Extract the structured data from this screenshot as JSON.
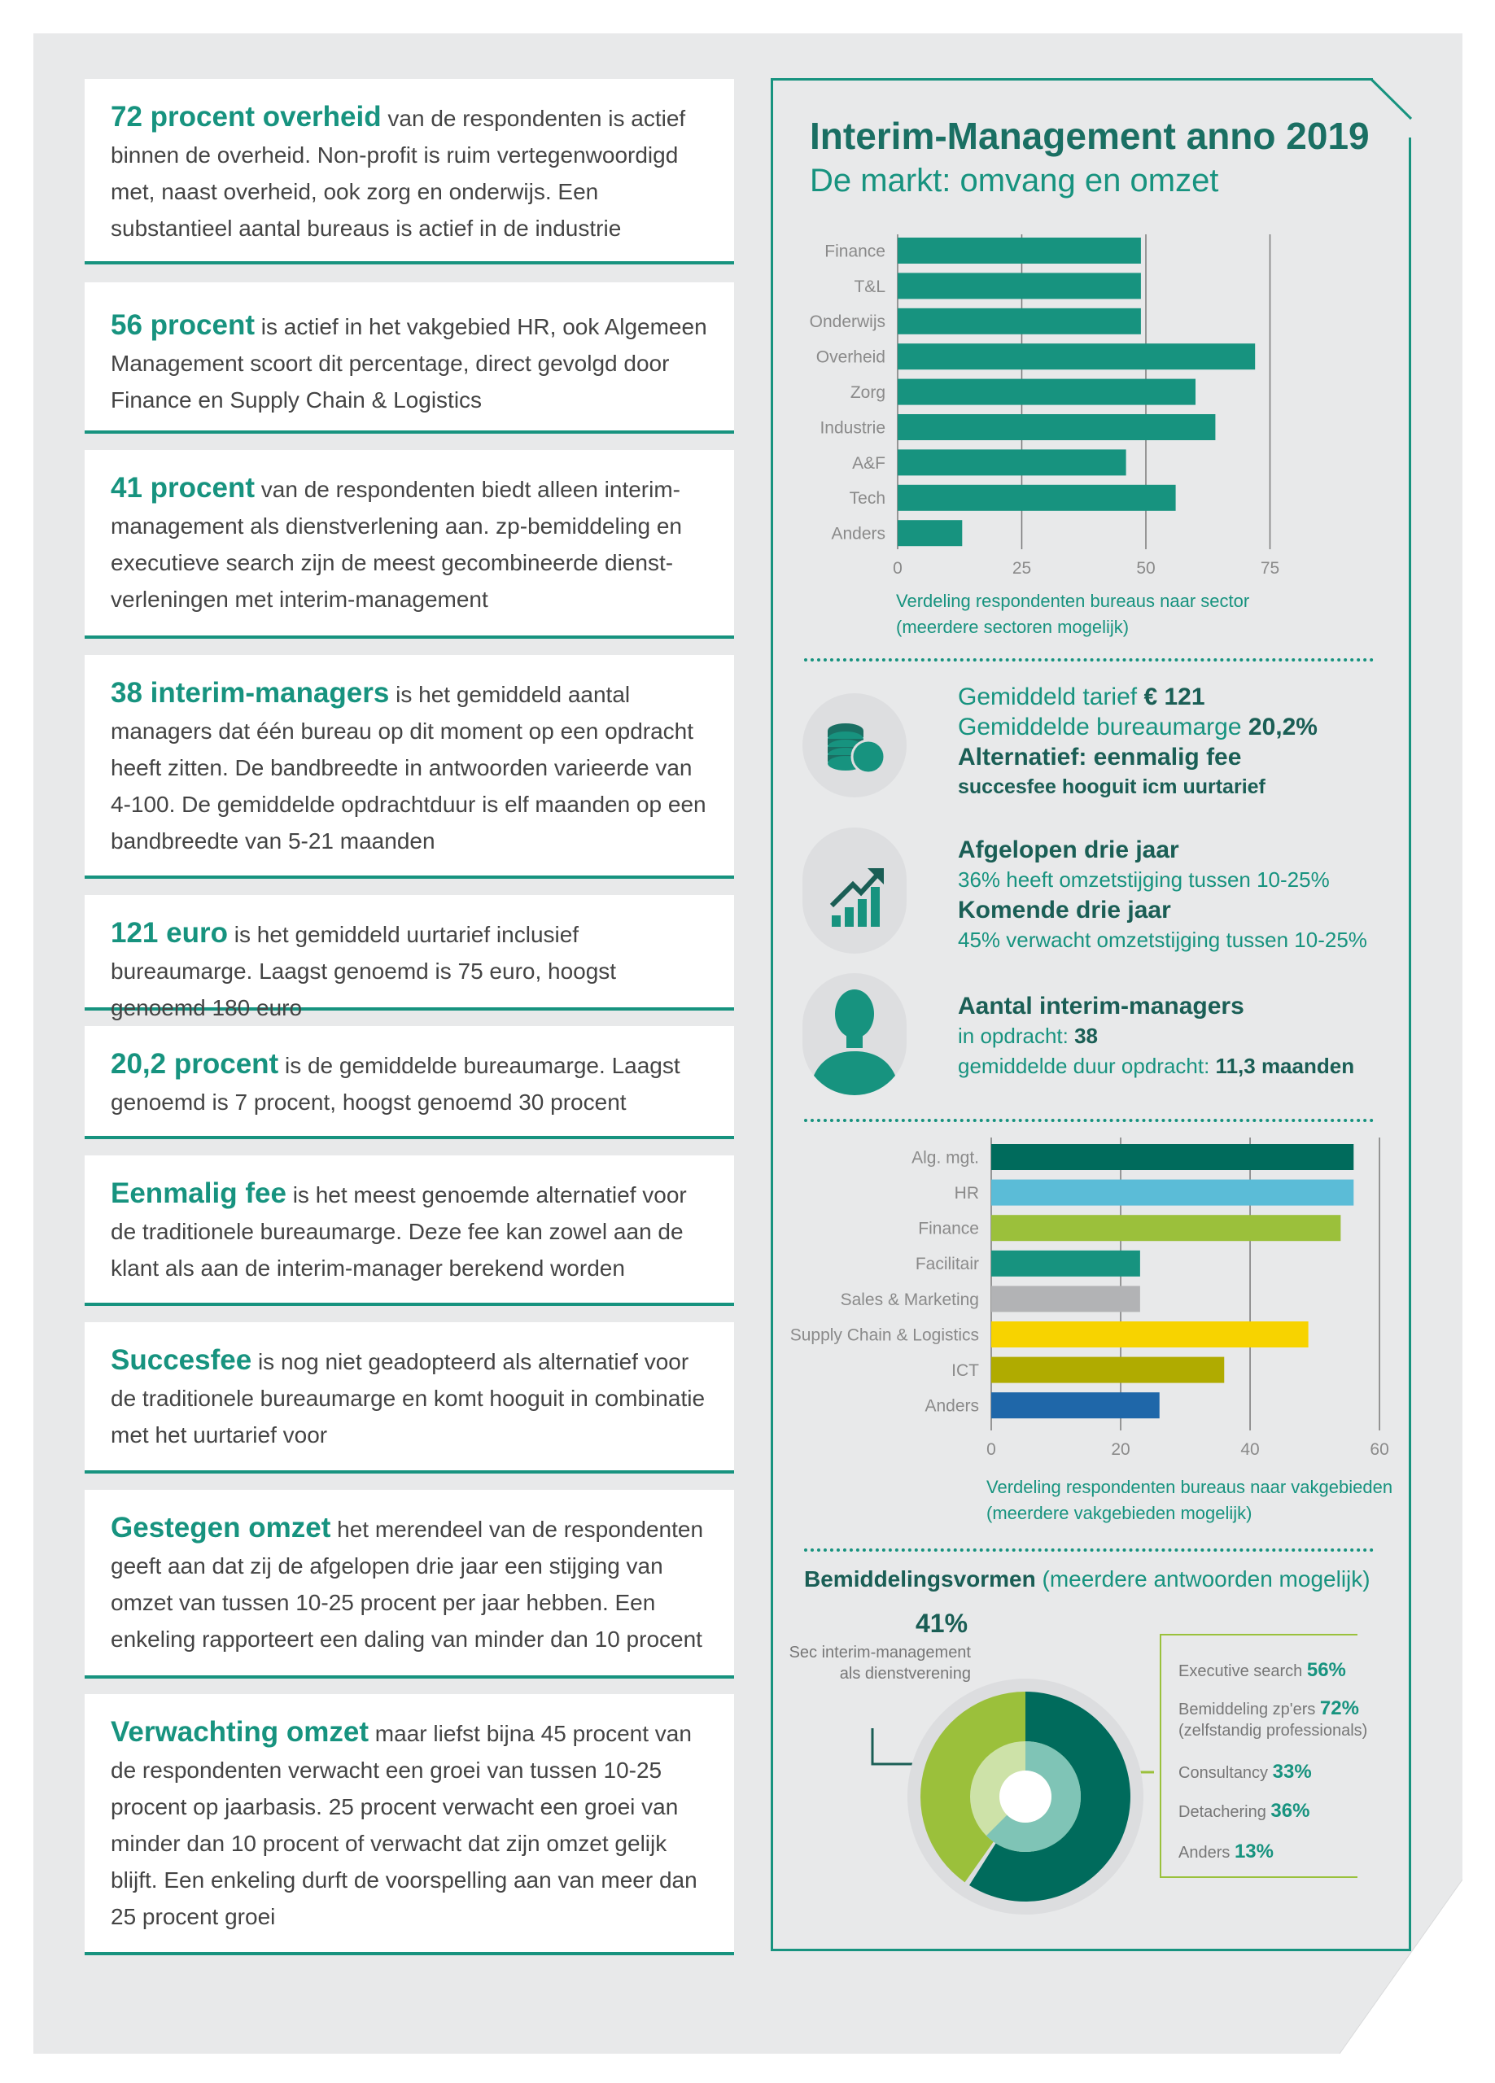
{
  "left_cards": [
    {
      "highlight": "72 procent overheid",
      "text": " van de respondenten is actief binnen de overheid. Non-profit is ruim vertegenwoordigd met, naast overheid, ook zorg en onderwijs. Een substantieel aantal bureaus is actief in de industrie"
    },
    {
      "highlight": "56 procent",
      "text": " is actief in het vakgebied HR, ook Algemeen Management scoort dit percentage, direct gevolgd door Finance en Supply Chain & Logistics"
    },
    {
      "highlight": "41 procent",
      "text": " van de respondenten biedt alleen interim-management als dienstverlening aan. zp-bemiddeling en executieve search zijn de meest gecombineerde dienst-verleningen met interim-management"
    },
    {
      "highlight": "38 interim-managers",
      "text": " is het gemiddeld aantal managers dat één bureau op dit moment op een opdracht heeft zitten. De bandbreedte in antwoorden varieerde van 4-100. De gemiddelde opdrachtduur is elf maanden op een bandbreedte van 5-21 maanden"
    },
    {
      "highlight": "121 euro",
      "text": " is het gemiddeld uurtarief inclusief bureaumarge. Laagst genoemd is 75 euro, hoogst genoemd 180 euro"
    },
    {
      "highlight": "20,2 procent",
      "text": " is de gemiddelde bureaumarge. Laagst genoemd is 7 procent, hoogst genoemd 30 procent"
    },
    {
      "highlight": "Eenmalig fee",
      "text": " is het meest genoemde alternatief voor de traditionele bureaumarge. Deze fee kan zowel aan de klant als aan de interim-manager berekend worden"
    },
    {
      "highlight": "Succesfee",
      "text": " is nog niet geadopteerd als alternatief voor de traditionele bureaumarge en komt hooguit in combinatie met het uurtarief voor"
    },
    {
      "highlight": "Gestegen omzet",
      "text": " het merendeel van de respondenten geeft aan dat zij de afgelopen drie jaar een stijging van omzet van tussen 10-25 procent per jaar hebben. Een enkeling rapporteert een daling van minder dan 10 procent"
    },
    {
      "highlight": "Verwachting omzet",
      "text": " maar liefst bijna 45 procent van de respondenten verwacht een groei van tussen 10-25 procent op jaarbasis. 25 procent verwacht een groei van minder dan 10 procent of verwacht dat zijn omzet gelijk blijft. Een enkeling durft de voorspelling aan van meer dan 25 procent groei"
    }
  ],
  "panel": {
    "title": "Interim-Management anno 2019",
    "subtitle": "De markt: omvang en omzet"
  },
  "stats": {
    "tarief_label": "Gemiddeld tarief ",
    "tarief_value": "€ 121",
    "marge_label": "Gemiddelde bureaumarge ",
    "marge_value": "20,2%",
    "alt_line1": "Alternatief: eenmalig fee",
    "alt_line2": "succesfee hooguit icm uurtarief",
    "past_title": "Afgelopen drie jaar",
    "past_text": "36% heeft omzetstijging tussen 10-25%",
    "future_title": "Komende drie jaar",
    "future_text": "45% verwacht omzetstijging tussen 10-25%",
    "managers_title": "Aantal interim-managers",
    "opdracht_label": "in opdracht: ",
    "opdracht_value": "38",
    "duur_label": "gemiddelde duur opdracht: ",
    "duur_value": "11,3 maanden"
  },
  "icons": {
    "coins": "coins-icon",
    "growth": "growth-chart-icon",
    "person": "person-icon"
  },
  "bemiddeling": {
    "title": "Bemiddelingsvormen",
    "note": " (meerdere antwoorden mogelijk)",
    "big_value": "41%",
    "big_label_1": "Sec interim-management",
    "big_label_2": "als dienstverening"
  },
  "chart_data": [
    {
      "type": "bar",
      "orientation": "horizontal",
      "categories": [
        "Finance",
        "T&L",
        "Onderwijs",
        "Overheid",
        "Zorg",
        "Industrie",
        "A&F",
        "Tech",
        "Anders"
      ],
      "values": [
        49,
        49,
        49,
        72,
        60,
        64,
        46,
        56,
        13
      ],
      "xlim": [
        0,
        80
      ],
      "xticks": [
        0,
        25,
        50,
        75
      ],
      "color": "#17937f",
      "caption_1": "Verdeling respondenten bureaus naar sector",
      "caption_2": "(meerdere sectoren mogelijk)"
    },
    {
      "type": "bar",
      "orientation": "horizontal",
      "categories": [
        "Alg. mgt.",
        "HR",
        "Finance",
        "Facilitair",
        "Sales & Marketing",
        "Supply Chain & Logistics",
        "ICT",
        "Anders"
      ],
      "values": [
        56,
        56,
        54,
        23,
        23,
        49,
        36,
        26
      ],
      "colors": [
        "#006b5c",
        "#5bbcd7",
        "#9bc03b",
        "#17937f",
        "#b2b3b5",
        "#f7d300",
        "#b0ab00",
        "#1f67a9"
      ],
      "xlim": [
        0,
        62
      ],
      "xticks": [
        0,
        20,
        40,
        60
      ],
      "caption_1": "Verdeling respondenten bureaus naar vakgebieden",
      "caption_2": "(meerdere vakgebieden mogelijk)"
    },
    {
      "type": "pie",
      "title": "Bemiddelingsvormen",
      "slices": [
        {
          "label": "Executive search",
          "value": 56
        },
        {
          "label": "Bemiddeling zp'ers",
          "sublabel": "(zelfstandig professionals)",
          "value": 72
        },
        {
          "label": "Consultancy",
          "value": 33
        },
        {
          "label": "Detachering",
          "value": 36
        },
        {
          "label": "Anders",
          "value": 13
        }
      ],
      "display_values": [
        "56%",
        "72%",
        "33%",
        "36%",
        "13%"
      ],
      "donut_outer_split": [
        41,
        59
      ],
      "colors": {
        "light_green": "#9bc03b",
        "dark_teal": "#006b5c",
        "teal": "#17937f",
        "pale": "#cde2a8"
      }
    }
  ]
}
